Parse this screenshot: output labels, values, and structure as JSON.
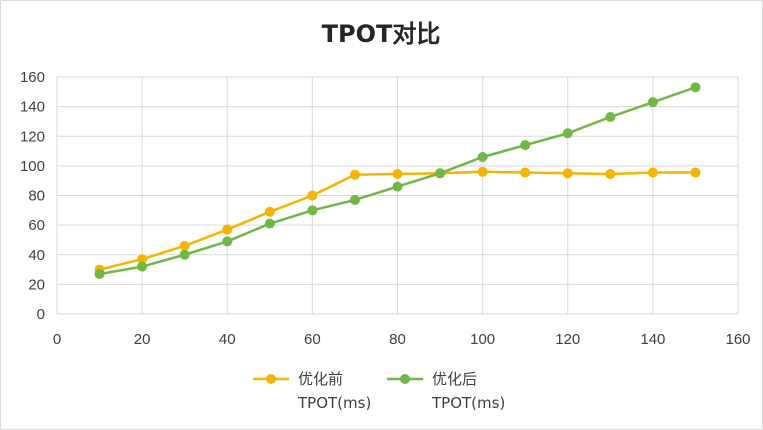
{
  "chart_data": {
    "type": "line",
    "title": "TPOT对比",
    "xlabel": "",
    "ylabel": "",
    "xlim": [
      0,
      160
    ],
    "ylim": [
      0,
      160
    ],
    "x_ticks": [
      0,
      20,
      40,
      60,
      80,
      100,
      120,
      140,
      160
    ],
    "y_ticks": [
      0,
      20,
      40,
      60,
      80,
      100,
      120,
      140,
      160
    ],
    "grid": true,
    "legend_position": "bottom",
    "series": [
      {
        "name": "优化前 TPOT(ms)",
        "name_lines": [
          "优化前",
          "TPOT(ms)"
        ],
        "color": "#F4B400",
        "x": [
          10,
          20,
          30,
          40,
          50,
          60,
          70,
          80,
          90,
          100,
          110,
          120,
          130,
          140,
          150
        ],
        "y": [
          30,
          37,
          46,
          57,
          69,
          80,
          94,
          94.5,
          95,
          96,
          95.5,
          95,
          94.5,
          95.5,
          95.5
        ]
      },
      {
        "name": "优化后 TPOT(ms)",
        "name_lines": [
          "优化后",
          "TPOT(ms)"
        ],
        "color": "#70B746",
        "x": [
          10,
          20,
          30,
          40,
          50,
          60,
          70,
          80,
          90,
          100,
          110,
          120,
          130,
          140,
          150
        ],
        "y": [
          27,
          32,
          40,
          49,
          61,
          70,
          77,
          86,
          95,
          106,
          114,
          122,
          133,
          143,
          153
        ]
      }
    ]
  }
}
